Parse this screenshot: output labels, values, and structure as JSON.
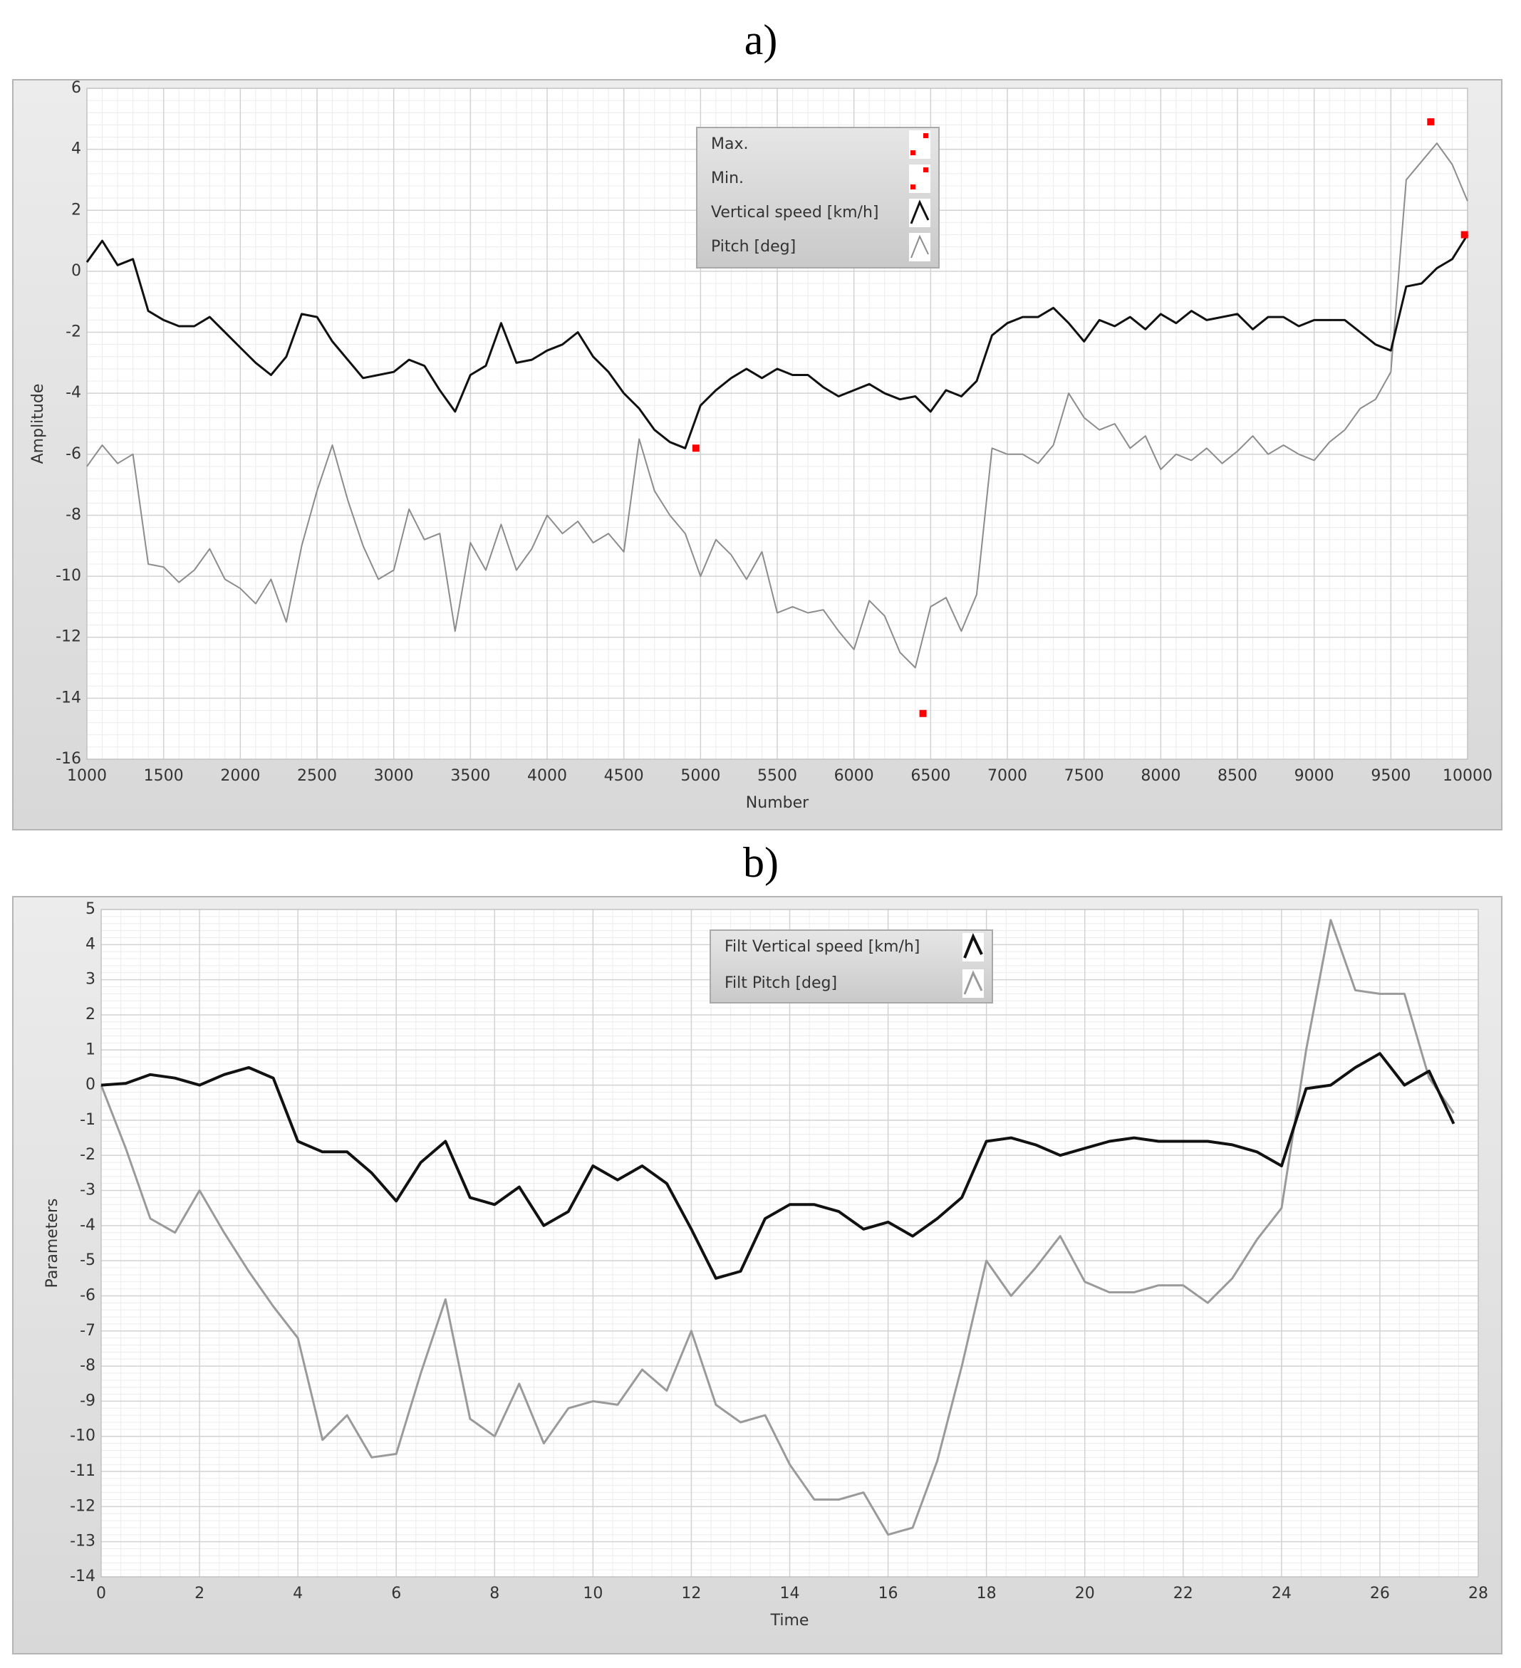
{
  "chart_data": [
    {
      "type": "line",
      "label": "a)",
      "xlabel": "Number",
      "ylabel": "Amplitude",
      "xlim": [
        1000,
        10000
      ],
      "xticks": [
        1000,
        1500,
        2000,
        2500,
        3000,
        3500,
        4000,
        4500,
        5000,
        5500,
        6000,
        6500,
        7000,
        7500,
        8000,
        8500,
        9000,
        9500,
        10000
      ],
      "ylim": [
        -16,
        6
      ],
      "yticks": [
        -16,
        -14,
        -12,
        -10,
        -8,
        -6,
        -4,
        -2,
        0,
        2,
        4,
        6
      ],
      "grid": true,
      "x": [
        1000,
        1100,
        1200,
        1300,
        1400,
        1500,
        1600,
        1700,
        1800,
        1900,
        2000,
        2100,
        2200,
        2300,
        2400,
        2500,
        2600,
        2700,
        2800,
        2900,
        3000,
        3100,
        3200,
        3300,
        3400,
        3500,
        3600,
        3700,
        3800,
        3900,
        4000,
        4100,
        4200,
        4300,
        4400,
        4500,
        4600,
        4700,
        4800,
        4900,
        5000,
        5100,
        5200,
        5300,
        5400,
        5500,
        5600,
        5700,
        5800,
        5900,
        6000,
        6100,
        6200,
        6300,
        6400,
        6500,
        6600,
        6700,
        6800,
        6900,
        7000,
        7100,
        7200,
        7300,
        7400,
        7500,
        7600,
        7700,
        7800,
        7900,
        8000,
        8100,
        8200,
        8300,
        8400,
        8500,
        8600,
        8700,
        8800,
        8900,
        9000,
        9100,
        9200,
        9300,
        9400,
        9500,
        9600,
        9700,
        9800,
        9900,
        10000
      ],
      "series": [
        {
          "name": "Max.",
          "type": "scatter",
          "color": "#ff0000",
          "x": [
            9760,
            9980
          ],
          "values": [
            4.9,
            1.2
          ]
        },
        {
          "name": "Min.",
          "type": "scatter",
          "color": "#ff0000",
          "x": [
            4970,
            6450
          ],
          "values": [
            -5.8,
            -14.5
          ]
        },
        {
          "name": "Vertical speed [km/h]",
          "type": "line",
          "color": "#111111",
          "width": 3,
          "values": [
            0.3,
            1.0,
            0.2,
            0.4,
            -1.3,
            -1.6,
            -1.8,
            -1.8,
            -1.5,
            -2.0,
            -2.5,
            -3.0,
            -3.4,
            -2.8,
            -1.4,
            -1.5,
            -2.3,
            -2.9,
            -3.5,
            -3.4,
            -3.3,
            -2.9,
            -3.1,
            -3.9,
            -4.6,
            -3.4,
            -3.1,
            -1.7,
            -3.0,
            -2.9,
            -2.6,
            -2.4,
            -2.0,
            -2.8,
            -3.3,
            -4.0,
            -4.5,
            -5.2,
            -5.6,
            -5.8,
            -4.4,
            -3.9,
            -3.5,
            -3.2,
            -3.5,
            -3.2,
            -3.4,
            -3.4,
            -3.8,
            -4.1,
            -3.9,
            -3.7,
            -4.0,
            -4.2,
            -4.1,
            -4.6,
            -3.9,
            -4.1,
            -3.6,
            -2.1,
            -1.7,
            -1.5,
            -1.5,
            -1.2,
            -1.7,
            -2.3,
            -1.6,
            -1.8,
            -1.5,
            -1.9,
            -1.4,
            -1.7,
            -1.3,
            -1.6,
            -1.5,
            -1.4,
            -1.9,
            -1.5,
            -1.5,
            -1.8,
            -1.6,
            -1.6,
            -1.6,
            -2.0,
            -2.4,
            -2.6,
            -0.5,
            -0.4,
            0.1,
            0.4,
            1.2
          ]
        },
        {
          "name": "Pitch [deg]",
          "type": "line",
          "color": "#8c8c8c",
          "width": 2,
          "values": [
            -6.4,
            -5.7,
            -6.3,
            -6.0,
            -9.6,
            -9.7,
            -10.2,
            -9.8,
            -9.1,
            -10.1,
            -10.4,
            -10.9,
            -10.1,
            -11.5,
            -9.0,
            -7.2,
            -5.7,
            -7.5,
            -9.0,
            -10.1,
            -9.8,
            -7.8,
            -8.8,
            -8.6,
            -11.8,
            -8.9,
            -9.8,
            -8.3,
            -9.8,
            -9.1,
            -8.0,
            -8.6,
            -8.2,
            -8.9,
            -8.6,
            -9.2,
            -5.5,
            -7.2,
            -8.0,
            -8.6,
            -10.0,
            -8.8,
            -9.3,
            -10.1,
            -9.2,
            -11.2,
            -11.0,
            -11.2,
            -11.1,
            -11.8,
            -12.4,
            -10.8,
            -11.3,
            -12.5,
            -13.0,
            -11.0,
            -10.7,
            -11.8,
            -10.6,
            -5.8,
            -6.0,
            -6.0,
            -6.3,
            -5.7,
            -4.0,
            -4.8,
            -5.2,
            -5.0,
            -5.8,
            -5.4,
            -6.5,
            -6.0,
            -6.2,
            -5.8,
            -6.3,
            -5.9,
            -5.4,
            -6.0,
            -5.7,
            -6.0,
            -6.2,
            -5.6,
            -5.2,
            -4.5,
            -4.2,
            -3.3,
            3.0,
            3.6,
            4.2,
            3.5,
            2.3
          ]
        }
      ]
    },
    {
      "type": "line",
      "label": "b)",
      "xlabel": "Time",
      "ylabel": "Parameters",
      "xlim": [
        0,
        28
      ],
      "xticks": [
        0,
        2,
        4,
        6,
        8,
        10,
        12,
        14,
        16,
        18,
        20,
        22,
        24,
        26,
        28
      ],
      "ylim": [
        -14,
        5
      ],
      "yticks": [
        -14,
        -13,
        -12,
        -11,
        -10,
        -9,
        -8,
        -7,
        -6,
        -5,
        -4,
        -3,
        -2,
        -1,
        0,
        1,
        2,
        3,
        4,
        5
      ],
      "grid": true,
      "x": [
        0,
        0.5,
        1,
        1.5,
        2,
        2.5,
        3,
        3.5,
        4,
        4.5,
        5,
        5.5,
        6,
        6.5,
        7,
        7.5,
        8,
        8.5,
        9,
        9.5,
        10,
        10.5,
        11,
        11.5,
        12,
        12.5,
        13,
        13.5,
        14,
        14.5,
        15,
        15.5,
        16,
        16.5,
        17,
        17.5,
        18,
        18.5,
        19,
        19.5,
        20,
        20.5,
        21,
        21.5,
        22,
        22.5,
        23,
        23.5,
        24,
        24.5,
        25,
        25.5,
        26,
        26.5,
        27,
        27.5
      ],
      "series": [
        {
          "name": "Filt Vertical speed [km/h]",
          "type": "line",
          "color": "#111111",
          "width": 4,
          "values": [
            0,
            0.05,
            0.3,
            0.2,
            0,
            0.3,
            0.5,
            0.2,
            -1.6,
            -1.9,
            -1.9,
            -2.5,
            -3.3,
            -2.2,
            -1.6,
            -3.2,
            -3.4,
            -2.9,
            -4.0,
            -3.6,
            -2.3,
            -2.7,
            -2.3,
            -2.8,
            -4.1,
            -5.5,
            -5.3,
            -3.8,
            -3.4,
            -3.4,
            -3.6,
            -4.1,
            -3.9,
            -4.3,
            -3.8,
            -3.2,
            -1.6,
            -1.5,
            -1.7,
            -2.0,
            -1.8,
            -1.6,
            -1.5,
            -1.6,
            -1.6,
            -1.6,
            -1.7,
            -1.9,
            -2.3,
            -0.1,
            0.0,
            0.5,
            0.9,
            0.0,
            0.4,
            -1.1
          ]
        },
        {
          "name": "Filt Pitch [deg]",
          "type": "line",
          "color": "#9a9a9a",
          "width": 3,
          "values": [
            0,
            -1.8,
            -3.8,
            -4.2,
            -3.0,
            -4.2,
            -5.3,
            -6.3,
            -7.2,
            -10.1,
            -9.4,
            -10.6,
            -10.5,
            -8.2,
            -6.1,
            -9.5,
            -10.0,
            -8.5,
            -10.2,
            -9.2,
            -9.0,
            -9.1,
            -8.1,
            -8.7,
            -7.0,
            -9.1,
            -9.6,
            -9.4,
            -10.8,
            -11.8,
            -11.8,
            -11.6,
            -12.8,
            -12.6,
            -10.7,
            -8.0,
            -5.0,
            -6.0,
            -5.2,
            -4.3,
            -5.6,
            -5.9,
            -5.9,
            -5.7,
            -5.7,
            -6.2,
            -5.5,
            -4.4,
            -3.5,
            1.0,
            4.7,
            2.7,
            2.6,
            2.6,
            0.2,
            -0.8
          ]
        }
      ]
    }
  ]
}
